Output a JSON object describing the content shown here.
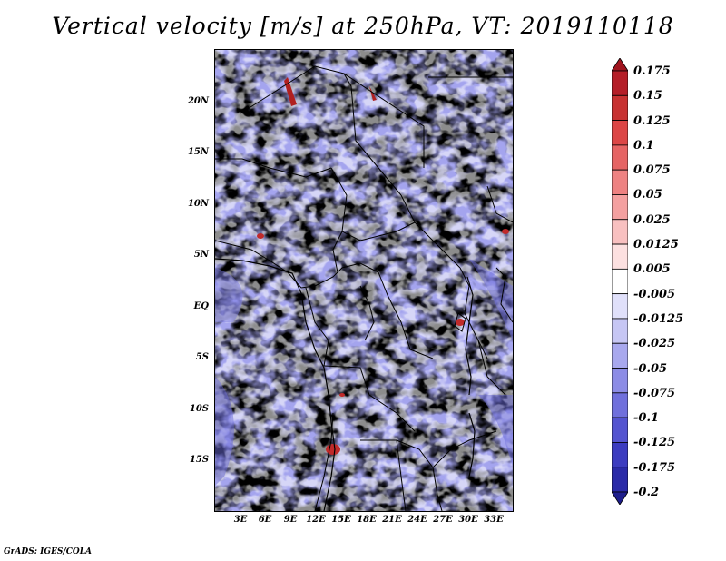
{
  "title": "Vertical velocity [m/s] at 250hPa, VT: 2019110118",
  "credit": "GrADS: IGES/COLA",
  "lat_labels": [
    "20N",
    "15N",
    "10N",
    "5N",
    "EQ",
    "5S",
    "10S",
    "15S"
  ],
  "lon_labels": [
    "3E",
    "6E",
    "9E",
    "12E",
    "15E",
    "18E",
    "21E",
    "24E",
    "27E",
    "30E",
    "33E"
  ],
  "colorbar": {
    "labels": [
      "0.175",
      "0.15",
      "0.125",
      "0.1",
      "0.075",
      "0.05",
      "0.025",
      "0.0125",
      "0.005",
      "-0.005",
      "-0.0125",
      "-0.025",
      "-0.05",
      "-0.075",
      "-0.1",
      "-0.125",
      "-0.175",
      "-0.2"
    ],
    "colors": [
      "#a0141e",
      "#b51e28",
      "#c83232",
      "#dc4646",
      "#e66464",
      "#ee8282",
      "#f4a0a0",
      "#f8c0c0",
      "#fce0e0",
      "#ffffff",
      "#e0e0fa",
      "#c6c6f4",
      "#a8a8ee",
      "#8c8ce6",
      "#7070dc",
      "#5454d0",
      "#3c3cc0",
      "#2a2aa8",
      "#1e1e8c"
    ]
  },
  "colors": {
    "positive_field": "#f0a8a8",
    "negative_field": "#a0a0ee",
    "boundary": "#000000"
  }
}
